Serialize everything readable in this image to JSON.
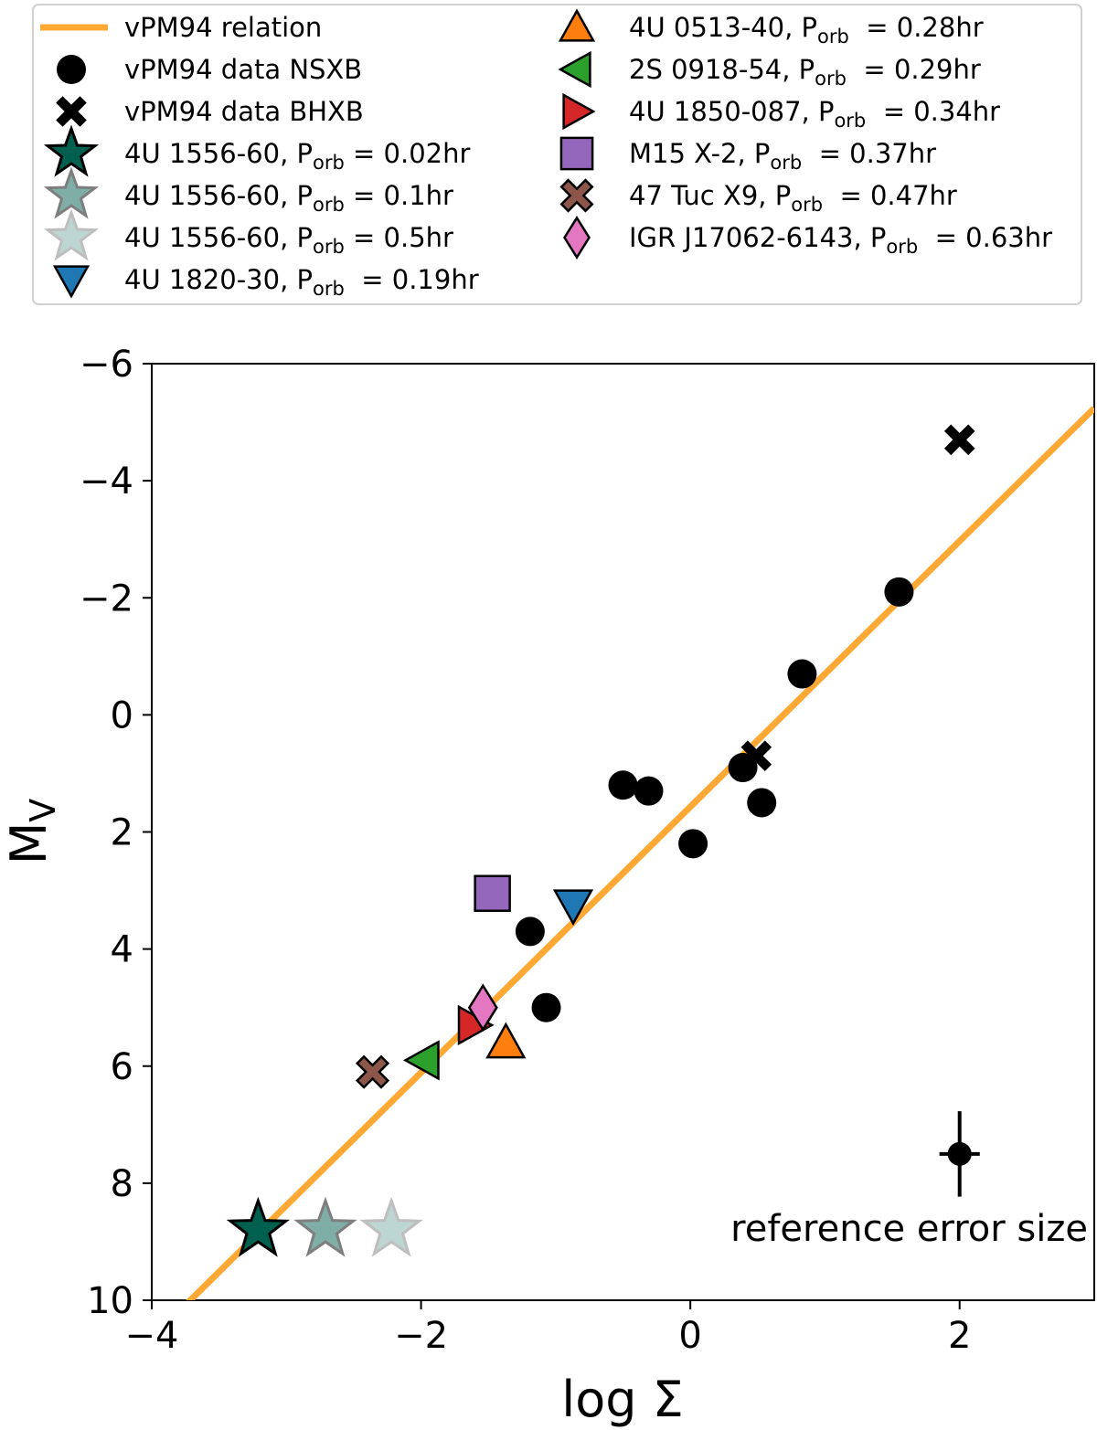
{
  "chart_data": {
    "type": "scatter",
    "xlabel": "log Σ",
    "ylabel": {
      "main": "M",
      "sub": "V"
    },
    "xlim": [
      -4,
      3
    ],
    "ylim": [
      10,
      -6
    ],
    "y_inverted": true,
    "grid": false,
    "legend_placement": "top (above plot)",
    "xticks": [
      -4,
      -2,
      0,
      2
    ],
    "xtick_labels": [
      "−4",
      "−2",
      "0",
      "2"
    ],
    "yticks": [
      -6,
      -4,
      -2,
      0,
      2,
      4,
      6,
      8,
      10
    ],
    "ytick_labels": [
      "−6",
      "−4",
      "−2",
      "0",
      "2",
      "4",
      "6",
      "8",
      "10"
    ],
    "relation": {
      "name": "vPM94 relation",
      "intercept": 1.57,
      "slope": -2.27,
      "color": "#ffa833"
    },
    "series": [
      {
        "name": "vPM94 data NSXB",
        "marker": "circle",
        "color": "#000000",
        "points": [
          [
            -0.5,
            1.2
          ],
          [
            -0.31,
            1.3
          ],
          [
            0.02,
            2.2
          ],
          [
            0.39,
            0.9
          ],
          [
            0.53,
            1.5
          ],
          [
            0.83,
            -0.7
          ],
          [
            1.55,
            -2.1
          ],
          [
            -1.19,
            3.7
          ],
          [
            -1.07,
            5.0
          ]
        ]
      },
      {
        "name": "vPM94 data BHXB",
        "marker": "x",
        "color": "#000000",
        "points": [
          [
            2.0,
            -4.7
          ],
          [
            0.49,
            0.7
          ]
        ]
      },
      {
        "name": {
          "pre": "4U 1556-60, P",
          "sub": "orb",
          "post": " = 0.02hr"
        },
        "marker": "star",
        "color": "#006050",
        "alpha": 1.0,
        "points": [
          [
            -3.21,
            8.8
          ]
        ]
      },
      {
        "name": {
          "pre": "4U 1556-60, P",
          "sub": "orb",
          "post": " = 0.1hr"
        },
        "marker": "star",
        "color": "#006050",
        "alpha": 0.5,
        "points": [
          [
            -2.71,
            8.8
          ]
        ]
      },
      {
        "name": {
          "pre": "4U 1556-60, P",
          "sub": "orb",
          "post": " = 0.5hr"
        },
        "marker": "star",
        "color": "#006050",
        "alpha": 0.25,
        "points": [
          [
            -2.22,
            8.8
          ]
        ]
      },
      {
        "name": {
          "pre": "4U 1820-30, P",
          "sub": "orb",
          "post": "  = 0.19hr"
        },
        "marker": "tri-down",
        "color": "#1f77b4",
        "points": [
          [
            -0.87,
            3.25
          ]
        ]
      },
      {
        "name": {
          "pre": "4U 0513-40, P",
          "sub": "orb",
          "post": "  = 0.28hr"
        },
        "marker": "tri-up",
        "color": "#ff7f0e",
        "points": [
          [
            -1.37,
            5.6
          ]
        ]
      },
      {
        "name": {
          "pre": "2S 0918-54, P",
          "sub": "orb",
          "post": "  = 0.29hr"
        },
        "marker": "tri-left",
        "color": "#2ca02c",
        "points": [
          [
            -1.98,
            5.9
          ]
        ]
      },
      {
        "name": {
          "pre": "4U 1850-087, P",
          "sub": "orb",
          "post": "  = 0.34hr"
        },
        "marker": "tri-right",
        "color": "#d62728",
        "points": [
          [
            -1.61,
            5.3
          ]
        ]
      },
      {
        "name": {
          "pre": "M15 X-2, P",
          "sub": "orb",
          "post": "  = 0.37hr"
        },
        "marker": "square",
        "color": "#9467bd",
        "points": [
          [
            -1.47,
            3.05
          ]
        ]
      },
      {
        "name": {
          "pre": "47 Tuc X9, P",
          "sub": "orb",
          "post": "  = 0.47hr"
        },
        "marker": "x",
        "color": "#8c564b",
        "points": [
          [
            -2.36,
            6.1
          ]
        ]
      },
      {
        "name": {
          "pre": "IGR J17062-6143, P",
          "sub": "orb",
          "post": "  = 0.63hr"
        },
        "marker": "diamond",
        "color": "#e377c2",
        "points": [
          [
            -1.54,
            5.0
          ]
        ]
      }
    ],
    "reference_error": {
      "label": "reference error size",
      "x": 2.0,
      "y": 7.5,
      "xerr": 0.15,
      "yerr": 0.73
    }
  }
}
